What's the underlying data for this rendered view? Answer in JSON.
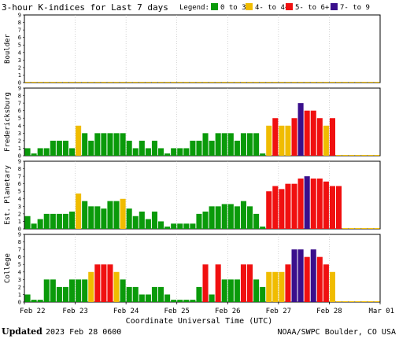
{
  "chart_data": {
    "type": "bar",
    "title": "3-hour K-indices for Last 7 days",
    "legend": {
      "label": "Legend:",
      "position": "top-right",
      "entries": [
        {
          "label": "0 to 3+",
          "color": "#0a9a0a"
        },
        {
          "label": "4- to 4+",
          "color": "#f0bc00"
        },
        {
          "label": "5- to 6+",
          "color": "#f01010"
        },
        {
          "label": "7- to 9",
          "color": "#3a0f8c"
        }
      ]
    },
    "xlabel": "Coordinate Universal Time (UTC)",
    "x_ticks": [
      "Feb 22",
      "Feb 23",
      "Feb 24",
      "Feb 25",
      "Feb 26",
      "Feb 27",
      "Feb 28",
      "Mar 01"
    ],
    "ylim": [
      0,
      9
    ],
    "y_ticks": [
      "0",
      "1",
      "2",
      "3",
      "4",
      "5",
      "6",
      "7",
      "8",
      "9"
    ],
    "bins_per_day": 8,
    "grid": "vertical day lines",
    "panels": [
      {
        "name": "Boulder",
        "values": [
          0.1,
          0.1,
          0.1,
          0.1,
          0.1,
          0.1,
          0.1,
          0.1,
          0.1,
          0.1,
          0.1,
          0.1,
          0.1,
          0.1,
          0.1,
          0.1,
          0.1,
          0.1,
          0.1,
          0.1,
          0.1,
          0.1,
          0.1,
          0.1,
          0.1,
          0.1,
          0.1,
          0.1,
          0.1,
          0.1,
          0.1,
          0.1,
          0.1,
          0.1,
          0.1,
          0.1,
          0.1,
          0.1,
          0.1,
          0.1,
          0.1,
          0.1,
          0.1,
          0.1,
          0.1,
          0.1,
          0.1,
          0.1,
          0.1,
          0.1,
          0.1,
          0.1,
          0.1,
          0.1,
          0.1,
          0.1
        ]
      },
      {
        "name": "Fredericksburg",
        "values": [
          1,
          0.3,
          1,
          1,
          2,
          2,
          2,
          1,
          4,
          3,
          2,
          3,
          3,
          3,
          3,
          3,
          2,
          1,
          2,
          1,
          2,
          1,
          0.3,
          1,
          1,
          1,
          2,
          2,
          3,
          2,
          3,
          3,
          3,
          2,
          3,
          3,
          3,
          0.3,
          4,
          5,
          4,
          4,
          5,
          7,
          6,
          6,
          5,
          4,
          5,
          0.1,
          0.1,
          0.1,
          0.1,
          0.1,
          0.1,
          0.1
        ]
      },
      {
        "name": "Est. Planetary",
        "values": [
          1.7,
          0.7,
          1.3,
          2,
          2,
          2,
          2,
          2.3,
          4.7,
          3.7,
          3,
          3,
          2.7,
          3.7,
          3.7,
          4,
          2.7,
          1.7,
          2.3,
          1.3,
          2.3,
          1,
          0.3,
          0.7,
          0.7,
          0.7,
          0.7,
          2,
          2.3,
          3,
          3,
          3.3,
          3.3,
          3,
          3.7,
          3,
          2,
          0.3,
          5,
          5.7,
          5.3,
          6,
          6,
          6.7,
          7,
          6.7,
          6.7,
          6.3,
          5.7,
          5.7,
          0.1,
          0.1,
          0.1,
          0.1,
          0.1,
          0.1
        ]
      },
      {
        "name": "College",
        "values": [
          1,
          0.3,
          0.3,
          3,
          3,
          2,
          2,
          3,
          3,
          3,
          4,
          5,
          5,
          5,
          4,
          3,
          2,
          2,
          1,
          1,
          2,
          2,
          1,
          0.3,
          0.3,
          0.3,
          0.3,
          2,
          5,
          1,
          5,
          3,
          3,
          3,
          5,
          5,
          3,
          2,
          4,
          4,
          4,
          5,
          7,
          7,
          6,
          7,
          6,
          5,
          4,
          0.1,
          0.1,
          0.1,
          0.1,
          0.1,
          0.1,
          0.1
        ]
      }
    ]
  },
  "footer": {
    "updated_label": "Updated",
    "updated_value": "2023 Feb 28 0600",
    "credit": "NOAA/SWPC Boulder, CO USA"
  }
}
